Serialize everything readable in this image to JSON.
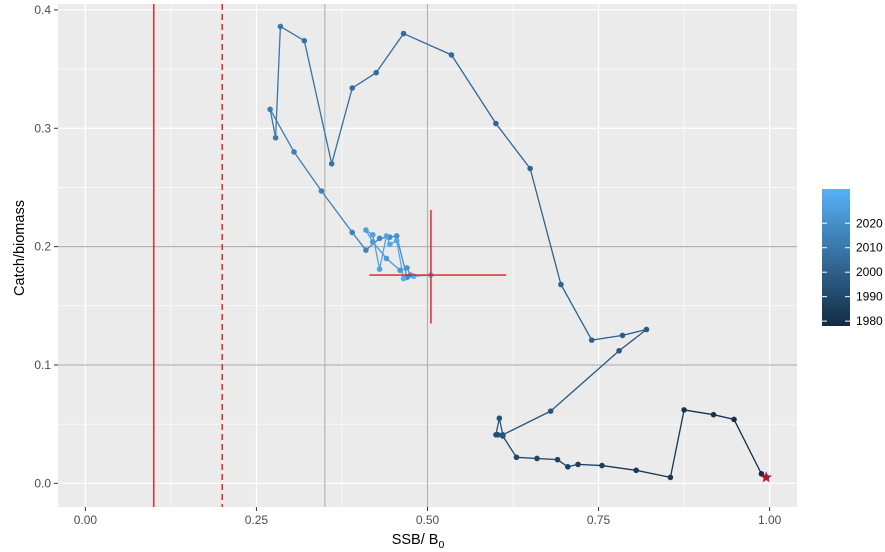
{
  "chart_data": {
    "type": "scatter",
    "title": "",
    "xlabel": "SSB/ B",
    "xlabel_subscript": "0",
    "ylabel": "Catch/biomass",
    "xlim": [
      -0.04,
      1.04
    ],
    "ylim": [
      -0.02,
      0.405
    ],
    "x_ticks": [
      0.0,
      0.25,
      0.5,
      0.75,
      1.0
    ],
    "x_tick_labels": [
      "0.00",
      "0.25",
      "0.50",
      "0.75",
      "1.00"
    ],
    "y_ticks": [
      0.0,
      0.1,
      0.2,
      0.3,
      0.4
    ],
    "y_tick_labels": [
      "0.0",
      "0.1",
      "0.2",
      "0.3",
      "0.4"
    ],
    "grid": true,
    "background": "#EBEBEB",
    "reference_lines": {
      "vertical_solid_red": 0.1,
      "vertical_dashed_red": 0.2,
      "vertical_grey": [
        0.35,
        0.5
      ],
      "horizontal_grey": [
        0.1,
        0.2
      ],
      "red_color": "#E41A1C",
      "grey_color": "#B3B3B3"
    },
    "current_estimate": {
      "x": 0.505,
      "y": 0.176,
      "x_interval": [
        0.415,
        0.615
      ],
      "y_interval": [
        0.135,
        0.231
      ]
    },
    "start_point": {
      "x": 0.995,
      "y": 0.005,
      "color": "#B2182B"
    },
    "legend": {
      "title": "",
      "position": "right",
      "labels": [
        "2020",
        "2010",
        "2000",
        "1990",
        "1980"
      ],
      "color_low": "#132B43",
      "color_high": "#56B1F7"
    },
    "series": [
      {
        "x": [
          0.995,
          0.988,
          0.948,
          0.918,
          0.875,
          0.855,
          0.805,
          0.755,
          0.72,
          0.705,
          0.69,
          0.66,
          0.63,
          0.61,
          0.603,
          0.6,
          0.605,
          0.61,
          0.68,
          0.78,
          0.82,
          0.785,
          0.74,
          0.695,
          0.65,
          0.6,
          0.535,
          0.465,
          0.425,
          0.39,
          0.36,
          0.32,
          0.285,
          0.278,
          0.27,
          0.305,
          0.345,
          0.39,
          0.41,
          0.43,
          0.445,
          0.455,
          0.47,
          0.475,
          0.47,
          0.46,
          0.44,
          0.42,
          0.41,
          0.42,
          0.43,
          0.44,
          0.445,
          0.455,
          0.465,
          0.48,
          0.505
        ],
        "y": [
          0.005,
          0.008,
          0.054,
          0.058,
          0.062,
          0.005,
          0.011,
          0.015,
          0.016,
          0.014,
          0.02,
          0.021,
          0.022,
          0.04,
          0.041,
          0.041,
          0.055,
          0.041,
          0.061,
          0.112,
          0.13,
          0.125,
          0.121,
          0.168,
          0.266,
          0.304,
          0.362,
          0.38,
          0.347,
          0.334,
          0.27,
          0.374,
          0.386,
          0.292,
          0.316,
          0.28,
          0.247,
          0.212,
          0.197,
          0.207,
          0.208,
          0.209,
          0.174,
          0.176,
          0.182,
          0.18,
          0.19,
          0.204,
          0.214,
          0.21,
          0.181,
          0.209,
          0.202,
          0.205,
          0.173,
          0.175,
          0.176
        ],
        "year": [
          1978,
          1979,
          1980,
          1981,
          1982,
          1983,
          1984,
          1985,
          1986,
          1987,
          1988,
          1989,
          1990,
          1991,
          1992,
          1993,
          1994,
          1995,
          1996,
          1997,
          1998,
          1999,
          2000,
          2001,
          2002,
          2003,
          2004,
          2005,
          2006,
          2007,
          2008,
          2009,
          2010,
          2011,
          2012,
          2013,
          2014,
          2015,
          2016,
          2017,
          2018,
          2019,
          2020,
          2021,
          2022,
          2023,
          2024,
          2025,
          2026,
          2027,
          2028,
          2029,
          2030,
          2031,
          2032,
          2033,
          2034
        ]
      }
    ]
  }
}
